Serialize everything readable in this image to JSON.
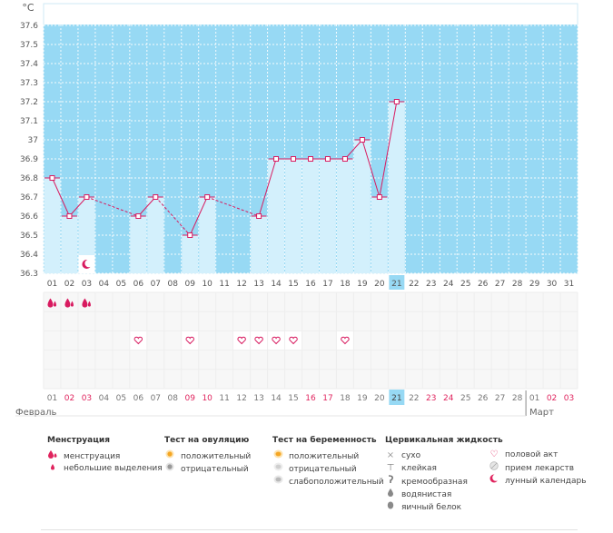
{
  "chart_data": {
    "type": "line",
    "unit_label": "°C",
    "y_ticks": [
      "37.6",
      "37.5",
      "37.4",
      "37.3",
      "37.2",
      "37.1",
      "37",
      "36.9",
      "36.8",
      "36.7",
      "36.6",
      "36.5",
      "36.4",
      "36.3"
    ],
    "ylim": [
      36.3,
      37.7
    ],
    "grid": true,
    "days": [
      "01",
      "02",
      "03",
      "04",
      "05",
      "06",
      "07",
      "08",
      "09",
      "10",
      "11",
      "12",
      "13",
      "14",
      "15",
      "16",
      "17",
      "18",
      "19",
      "20",
      "21",
      "22",
      "23",
      "24",
      "25",
      "26",
      "27",
      "28",
      "29",
      "30",
      "31"
    ],
    "current_day": "21",
    "temperature_series": [
      {
        "day": "01",
        "value": 36.8
      },
      {
        "day": "02",
        "value": 36.6
      },
      {
        "day": "03",
        "value": 36.7
      },
      {
        "day": "06",
        "value": 36.6
      },
      {
        "day": "07",
        "value": 36.7
      },
      {
        "day": "09",
        "value": 36.5
      },
      {
        "day": "10",
        "value": 36.7
      },
      {
        "day": "13",
        "value": 36.6
      },
      {
        "day": "14",
        "value": 36.9
      },
      {
        "day": "15",
        "value": 36.9
      },
      {
        "day": "16",
        "value": 36.9
      },
      {
        "day": "17",
        "value": 36.9
      },
      {
        "day": "18",
        "value": 36.9
      },
      {
        "day": "19",
        "value": 37.0
      },
      {
        "day": "20",
        "value": 36.7
      },
      {
        "day": "21",
        "value": 37.2
      }
    ],
    "moon_marker_day": "03",
    "menstruation_days": [
      "01",
      "02",
      "03"
    ],
    "intercourse_days": [
      "06",
      "09",
      "12",
      "13",
      "14",
      "15",
      "18"
    ],
    "bottom_days": [
      "01",
      "02",
      "03",
      "04",
      "05",
      "06",
      "07",
      "08",
      "09",
      "10",
      "11",
      "12",
      "13",
      "14",
      "15",
      "16",
      "17",
      "18",
      "19",
      "20",
      "21",
      "22",
      "23",
      "24",
      "25",
      "26",
      "27",
      "28",
      "01",
      "02",
      "03"
    ],
    "bottom_day_colors": [
      "gray",
      "pink",
      "pink",
      "gray",
      "gray",
      "gray",
      "gray",
      "gray",
      "pink",
      "pink",
      "gray",
      "gray",
      "gray",
      "gray",
      "gray",
      "pink",
      "pink",
      "gray",
      "gray",
      "gray",
      "current",
      "gray",
      "pink",
      "pink",
      "gray",
      "gray",
      "gray",
      "gray",
      "gray",
      "pink",
      "pink"
    ],
    "month_labels": {
      "start": "Февраль",
      "end": "Март"
    },
    "colors": {
      "sky": "#97d9f4",
      "bar": "#d3f0fc",
      "line": "#d81b60",
      "grid": "#ffffff",
      "cell_bg": "#f7f7f7",
      "cell_line": "#eeeeee",
      "highlight": "#97d9f4",
      "pink_text": "#e0245e",
      "gray_text": "#777777"
    }
  },
  "legend": {
    "menstruation": {
      "title": "Менструация",
      "items": [
        {
          "label": "менструация",
          "icon": "blood-drops-icon"
        },
        {
          "label": "небольшие выделения",
          "icon": "small-drop-icon"
        }
      ]
    },
    "ovulation_test": {
      "title": "Тест на овуляцию",
      "items": [
        {
          "label": "положительный",
          "icon": "orange-dot-icon"
        },
        {
          "label": "отрицательный",
          "icon": "gray-dot-icon"
        }
      ]
    },
    "pregnancy_test": {
      "title": "Тест на беременность",
      "items": [
        {
          "label": "положительный",
          "icon": "orange-test-icon"
        },
        {
          "label": "отрицательный",
          "icon": "gray-test-icon"
        },
        {
          "label": "слабоположительный",
          "icon": "weak-test-icon"
        }
      ]
    },
    "cervical_fluid": {
      "title": "Цервикальная жидкость",
      "items": [
        {
          "label": "сухо",
          "icon": "cross-icon"
        },
        {
          "label": "клейкая",
          "icon": "pin-icon"
        },
        {
          "label": "кремообразная",
          "icon": "cream-icon"
        },
        {
          "label": "водянистая",
          "icon": "water-drop-icon"
        },
        {
          "label": "яичный белок",
          "icon": "egg-white-icon"
        }
      ]
    },
    "other": {
      "items": [
        {
          "label": "половой акт",
          "icon": "heart-icon"
        },
        {
          "label": "прием лекарств",
          "icon": "pill-icon"
        },
        {
          "label": "лунный календарь",
          "icon": "moon-icon"
        }
      ]
    }
  }
}
